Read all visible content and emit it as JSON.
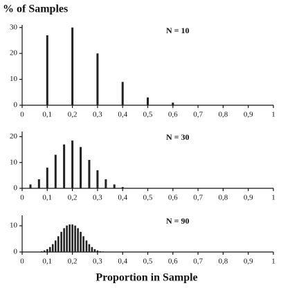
{
  "chart_data": [
    {
      "type": "bar",
      "ylabel": "% of Samples",
      "annotation": "N = 10",
      "color": "#222",
      "x": [
        0.1,
        0.2,
        0.3,
        0.4,
        0.5,
        0.6
      ],
      "values": [
        27,
        30,
        20,
        9,
        3,
        1
      ],
      "xlim": [
        0,
        1
      ],
      "ylim": [
        0,
        31
      ],
      "yticks": [
        0,
        10,
        20,
        30
      ],
      "xticks": [
        0,
        {
          "value": 0.1,
          "label": "0,1"
        },
        {
          "value": 0.2,
          "label": "0,2"
        },
        {
          "value": 0.3,
          "label": "0,3"
        },
        {
          "value": 0.4,
          "label": "0,4"
        },
        {
          "value": 0.5,
          "label": "0,5"
        },
        {
          "value": 0.6,
          "label": "0,6"
        },
        {
          "value": 0.7,
          "label": "0,7"
        },
        {
          "value": 0.8,
          "label": "0,8"
        },
        {
          "value": 0.9,
          "label": "0,9"
        },
        1
      ]
    },
    {
      "type": "bar",
      "annotation": "N = 30",
      "color": "#222",
      "x": [
        0.033,
        0.067,
        0.1,
        0.133,
        0.167,
        0.2,
        0.233,
        0.267,
        0.3,
        0.333,
        0.367,
        0.4
      ],
      "values": [
        1.5,
        3.5,
        8,
        13,
        17,
        18.5,
        16,
        11,
        7,
        3.5,
        1.5,
        0.5
      ],
      "xlim": [
        0,
        1
      ],
      "ylim": [
        0,
        22
      ],
      "yticks": [
        0,
        10,
        20
      ],
      "xticks": [
        0,
        {
          "value": 0.1,
          "label": "0,1"
        },
        {
          "value": 0.2,
          "label": "0,2"
        },
        {
          "value": 0.3,
          "label": "0,3"
        },
        {
          "value": 0.4,
          "label": "0,4"
        },
        {
          "value": 0.5,
          "label": "0,5"
        },
        {
          "value": 0.6,
          "label": "0,6"
        },
        {
          "value": 0.7,
          "label": "0,7"
        },
        {
          "value": 0.8,
          "label": "0,8"
        },
        {
          "value": 0.9,
          "label": "0,9"
        },
        1
      ]
    },
    {
      "type": "bar",
      "annotation": "N = 90",
      "xlabel": "Proportion in Sample",
      "color": "#222",
      "x": [
        0.078,
        0.089,
        0.1,
        0.111,
        0.122,
        0.133,
        0.144,
        0.156,
        0.167,
        0.178,
        0.189,
        0.2,
        0.211,
        0.222,
        0.233,
        0.244,
        0.256,
        0.267,
        0.278,
        0.289,
        0.3,
        0.311,
        0.322
      ],
      "values": [
        0.3,
        0.6,
        1.1,
        1.9,
        3,
        4.4,
        6,
        7.7,
        9.1,
        10.1,
        10.5,
        10.5,
        10.1,
        9.1,
        7.7,
        6,
        4.4,
        3,
        1.9,
        1.1,
        0.6,
        0.3,
        0.2
      ],
      "xlim": [
        0,
        1
      ],
      "ylim": [
        0,
        14
      ],
      "yticks": [
        0,
        10
      ],
      "xticks": [
        0,
        {
          "value": 0.1,
          "label": "0,1"
        },
        {
          "value": 0.2,
          "label": "0,2"
        },
        {
          "value": 0.3,
          "label": "0,3"
        },
        {
          "value": 0.4,
          "label": "0,4"
        },
        {
          "value": 0.5,
          "label": "0,5"
        },
        {
          "value": 0.6,
          "label": "0,6"
        },
        {
          "value": 0.7,
          "label": "0,7"
        },
        {
          "value": 0.8,
          "label": "0,8"
        },
        {
          "value": 0.9,
          "label": "0,9"
        },
        1
      ]
    }
  ]
}
